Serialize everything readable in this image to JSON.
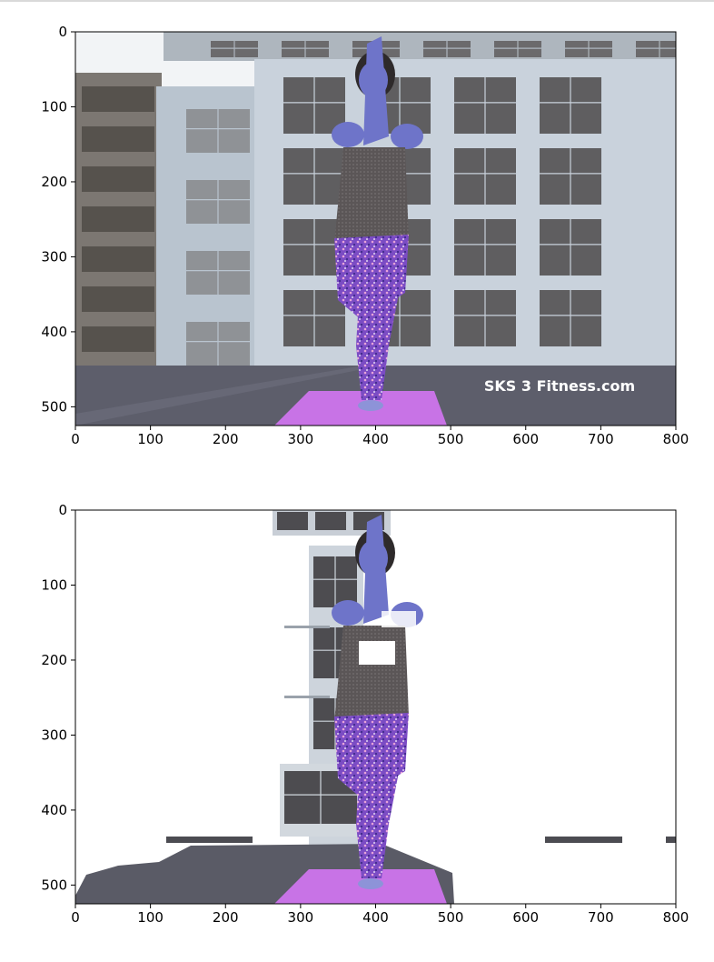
{
  "chart_data": [
    {
      "type": "image",
      "title": "",
      "xlabel": "",
      "ylabel": "",
      "xlim": [
        0,
        800
      ],
      "ylim": [
        525,
        0
      ],
      "x_ticks": [
        0,
        100,
        200,
        300,
        400,
        500,
        600,
        700,
        800
      ],
      "y_ticks": [
        0,
        100,
        200,
        300,
        400,
        500
      ],
      "watermark": "SKS 3 Fitness.com",
      "colors": {
        "sky": "#f2f4f6",
        "building": "#c9d2dc",
        "window": "#5f5e60",
        "ground": "#5d5e6b",
        "mat": "#c873e6",
        "skin": "#6e74c9",
        "shirt": "#5b5657",
        "pants": "#7b4cc4"
      }
    },
    {
      "type": "image",
      "title": "",
      "xlabel": "",
      "ylabel": "",
      "xlim": [
        0,
        800
      ],
      "ylim": [
        525,
        0
      ],
      "x_ticks": [
        0,
        100,
        200,
        300,
        400,
        500,
        600,
        700,
        800
      ],
      "y_ticks": [
        0,
        100,
        200,
        300,
        400,
        500
      ],
      "colors": {
        "background": "#ffffff",
        "window": "#4d4c50",
        "ground": "#5a5b66",
        "mat": "#c873e6",
        "skin": "#6e74c9",
        "shirt": "#5b5657",
        "pants": "#7b4cc4"
      }
    }
  ]
}
